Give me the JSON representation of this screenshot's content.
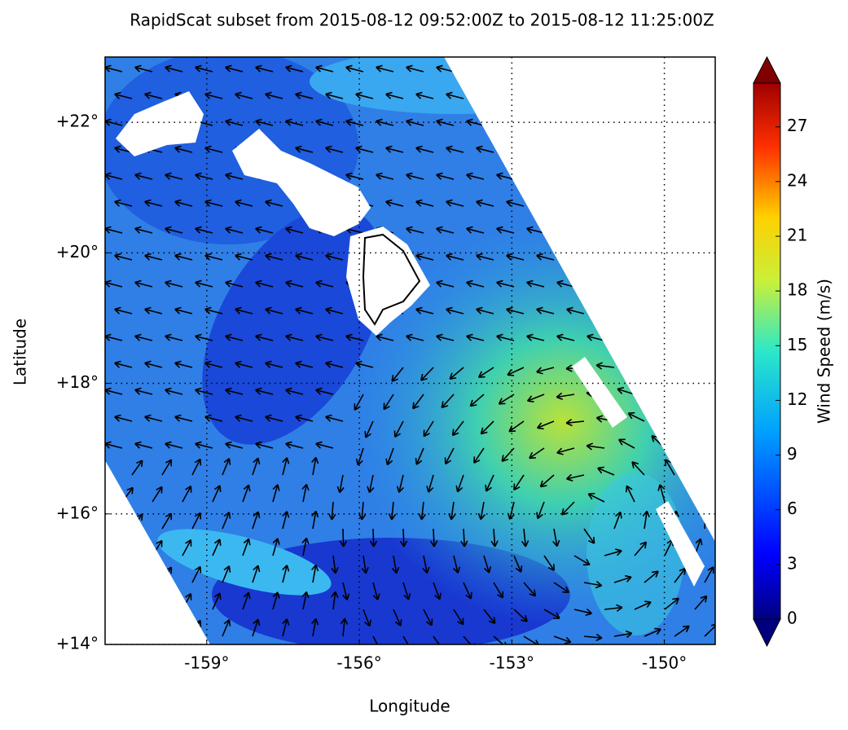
{
  "map": {
    "title": "RapidScat subset from 2015-08-12 09:52:00Z to 2015-08-12 11:25:00Z",
    "xlabel": "Longitude",
    "ylabel": "Latitude",
    "xlim": [
      -161,
      -149
    ],
    "ylim": [
      14,
      23
    ],
    "xticks": [
      {
        "value": -159,
        "label": "-159°"
      },
      {
        "value": -156,
        "label": "-156°"
      },
      {
        "value": -153,
        "label": "-153°"
      },
      {
        "value": -150,
        "label": "-150°"
      }
    ],
    "yticks": [
      {
        "value": 14,
        "label": "+14°"
      },
      {
        "value": 16,
        "label": "+16°"
      },
      {
        "value": 18,
        "label": "+18°"
      },
      {
        "value": 20,
        "label": "+20°"
      },
      {
        "value": 22,
        "label": "+22°"
      }
    ],
    "grid": true,
    "colorbar": {
      "label": "Wind Speed (m/s)",
      "lim": [
        0,
        29.4
      ],
      "ticks": [
        0,
        3,
        6,
        9,
        12,
        15,
        18,
        21,
        24,
        27
      ]
    }
  }
}
